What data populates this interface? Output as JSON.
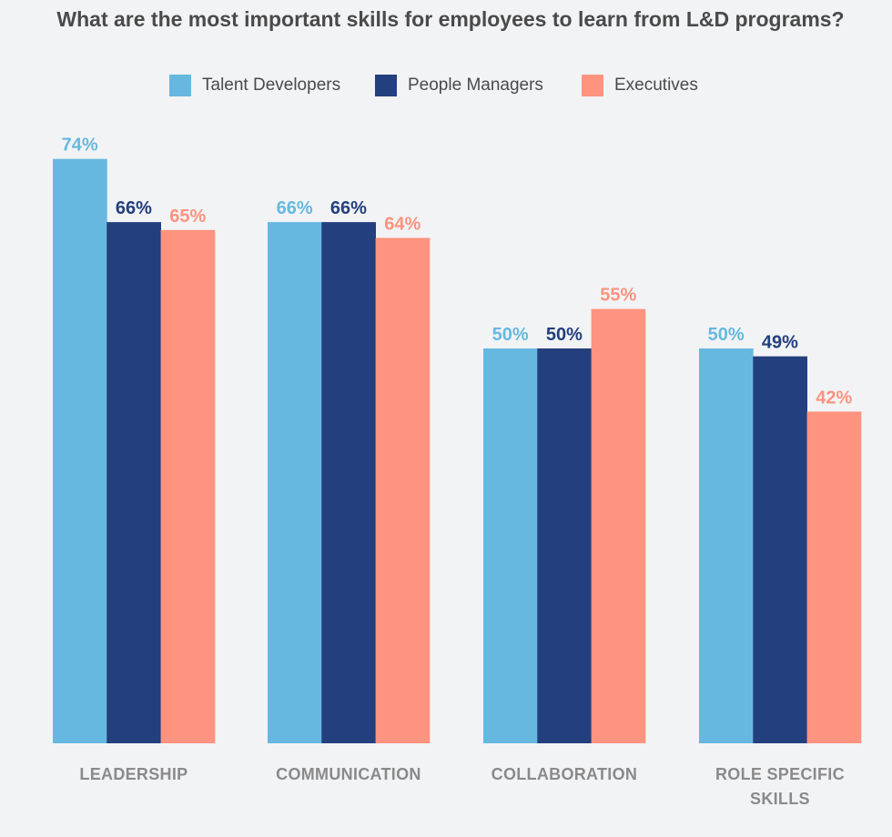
{
  "chart_data": {
    "type": "bar",
    "title": "What are the most important skills for employees to learn from L&D programs?",
    "categories": [
      "LEADERSHIP",
      "COMMUNICATION",
      "COLLABORATION",
      "ROLE SPECIFIC SKILLS"
    ],
    "category_lines": [
      [
        "LEADERSHIP"
      ],
      [
        "COMMUNICATION"
      ],
      [
        "COLLABORATION"
      ],
      [
        "ROLE SPECIFIC",
        "SKILLS"
      ]
    ],
    "series": [
      {
        "name": "Talent Developers",
        "color": "#67b8e0",
        "values": [
          74,
          66,
          50,
          50
        ]
      },
      {
        "name": "People Managers",
        "color": "#233f7d",
        "values": [
          66,
          66,
          50,
          49
        ]
      },
      {
        "name": "Executives",
        "color": "#fe937f",
        "values": [
          65,
          64,
          55,
          42
        ]
      }
    ],
    "value_suffix": "%",
    "ylim": [
      0,
      74
    ],
    "xlabel": "",
    "ylabel": "",
    "legend_position": "top-center",
    "grid": false
  }
}
